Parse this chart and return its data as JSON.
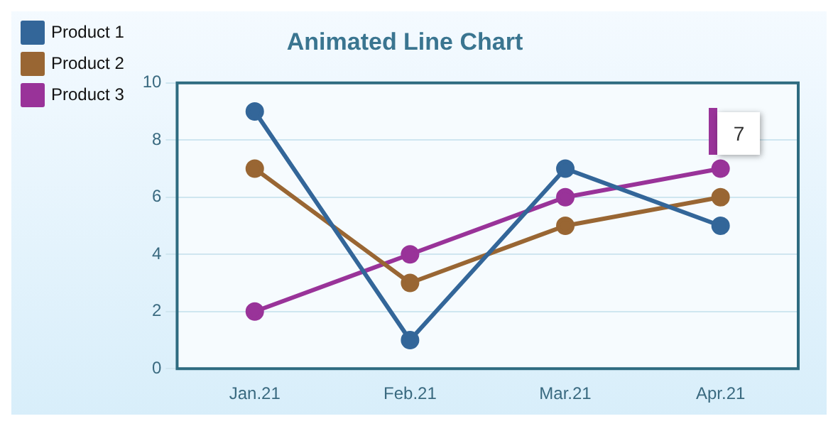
{
  "chart_data": {
    "type": "line",
    "title": "Animated Line Chart",
    "categories": [
      "Jan.21",
      "Feb.21",
      "Mar.21",
      "Apr.21"
    ],
    "series": [
      {
        "name": "Product 1",
        "color": "#336699",
        "values": [
          9,
          1,
          7,
          5
        ]
      },
      {
        "name": "Product 2",
        "color": "#996633",
        "values": [
          7,
          3,
          5,
          6
        ]
      },
      {
        "name": "Product 3",
        "color": "#993399",
        "values": [
          2,
          4,
          6,
          7
        ]
      }
    ],
    "ylim": [
      0,
      10
    ],
    "yticks": [
      0,
      2,
      4,
      6,
      8,
      10
    ],
    "grid": "y",
    "legend": "top left",
    "marker": "circle",
    "line_style": "solid",
    "annotations": [
      {
        "text": "7",
        "x": "Apr.21",
        "y": 7
      }
    ]
  }
}
